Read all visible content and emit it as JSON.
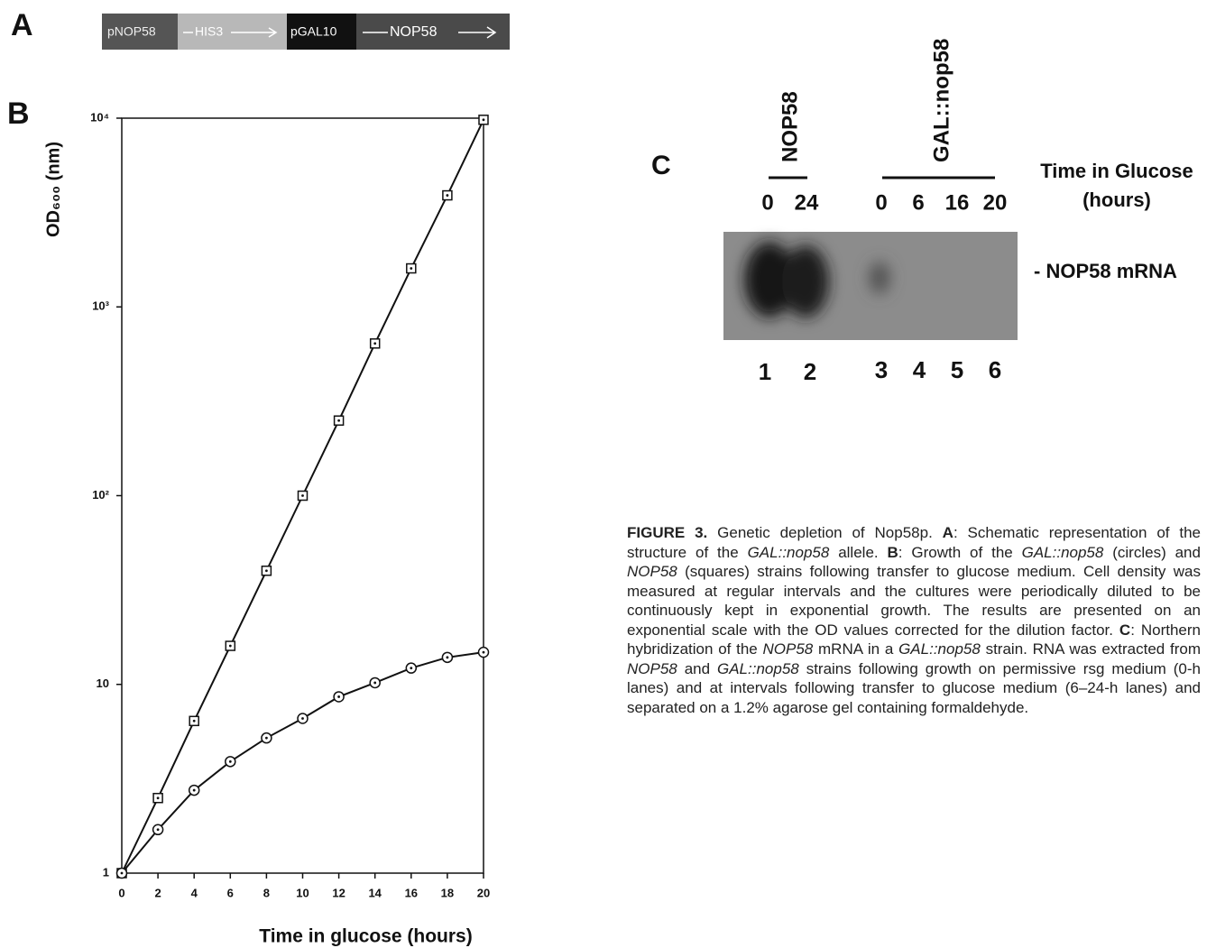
{
  "panel_a": {
    "label": "A",
    "segments": [
      "pNOP58",
      "HIS3",
      "pGAL10",
      "NOP58"
    ]
  },
  "panel_b": {
    "label": "B"
  },
  "chart_data": {
    "type": "line",
    "x_label": "Time in glucose (hours)",
    "y_label": "OD₆₀₀ (nm)",
    "x": [
      0,
      2,
      4,
      6,
      8,
      10,
      12,
      14,
      16,
      18,
      20
    ],
    "series": [
      {
        "marker": "square",
        "color": "#111111",
        "values": [
          1,
          2.5,
          6.4,
          16,
          40,
          100,
          250,
          640,
          1600,
          3900,
          9800
        ]
      },
      {
        "marker": "circle",
        "color": "#111111",
        "values": [
          1,
          1.7,
          2.75,
          3.9,
          5.2,
          6.6,
          8.6,
          10.2,
          12.2,
          13.9,
          14.8
        ]
      }
    ],
    "xlim": [
      0,
      20
    ],
    "xticks": [
      0,
      2,
      4,
      6,
      8,
      10,
      12,
      14,
      16,
      18,
      20
    ],
    "ylim": [
      1,
      10000
    ],
    "yticks": [
      1,
      10,
      {
        "value": 100,
        "label": "10²"
      },
      {
        "value": 1000,
        "label": "10³"
      },
      {
        "value": 10000,
        "label": "10⁴"
      }
    ],
    "log_y": true,
    "grid": false
  },
  "panel_c": {
    "label": "C",
    "groups": [
      "NOP58",
      "GAL::nop58"
    ],
    "times": [
      "0",
      "24",
      "0",
      "6",
      "16",
      "20"
    ],
    "time_label": [
      "Time in Glucose",
      "(hours)"
    ],
    "band_label": "- NOP58 mRNA",
    "lanes": [
      "1",
      "2",
      "3",
      "4",
      "5",
      "6"
    ]
  },
  "caption": [
    {
      "text": "FIGURE 3.",
      "style": "bold"
    },
    {
      "text": " Genetic depletion of Nop58p. ",
      "style": "normal"
    },
    {
      "text": "A",
      "style": "bold"
    },
    {
      "text": ": Schematic representation of the structure of the ",
      "style": "normal"
    },
    {
      "text": "GAL::nop58",
      "style": "italic"
    },
    {
      "text": " allele. ",
      "style": "normal"
    },
    {
      "text": "B",
      "style": "bold"
    },
    {
      "text": ": Growth of the ",
      "style": "normal"
    },
    {
      "text": "GAL::nop58",
      "style": "italic"
    },
    {
      "text": " (circles) and ",
      "style": "normal"
    },
    {
      "text": "NOP58",
      "style": "italic"
    },
    {
      "text": " (squares) strains following transfer to glucose medium. Cell density was measured at regular intervals and the cultures were periodically diluted to be continuously kept in exponential growth. The results are presented on an exponential scale with the OD values corrected for the dilution factor. ",
      "style": "normal"
    },
    {
      "text": "C",
      "style": "bold"
    },
    {
      "text": ": Northern hybridization of the ",
      "style": "normal"
    },
    {
      "text": "NOP58",
      "style": "italic"
    },
    {
      "text": " mRNA in a ",
      "style": "normal"
    },
    {
      "text": "GAL::nop58",
      "style": "italic"
    },
    {
      "text": " strain. RNA was extracted from ",
      "style": "normal"
    },
    {
      "text": "NOP58",
      "style": "italic"
    },
    {
      "text": " and ",
      "style": "normal"
    },
    {
      "text": "GAL::nop58",
      "style": "italic"
    },
    {
      "text": " strains following growth on permissive rsg medium (0-h lanes) and at intervals following transfer to glucose medium (6–24-h lanes) and separated on a 1.2% agarose gel containing formaldehyde.",
      "style": "normal"
    }
  ]
}
